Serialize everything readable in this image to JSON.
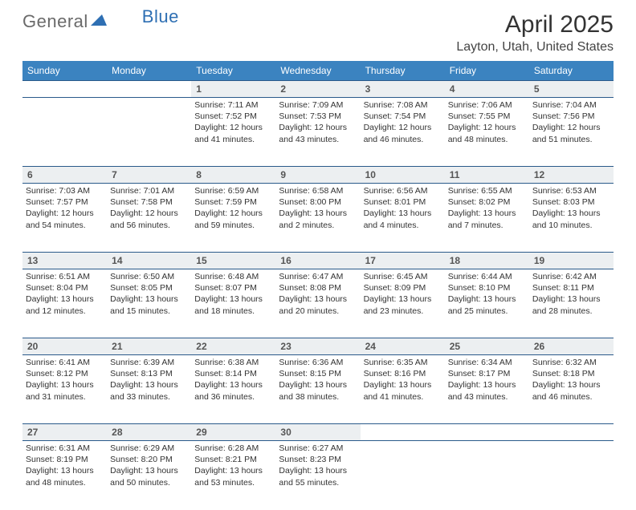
{
  "brand": {
    "part1": "General",
    "part2": "Blue"
  },
  "title": "April 2025",
  "subtitle": "Layton, Utah, United States",
  "colors": {
    "header_bg": "#3b83c0",
    "header_text": "#ffffff",
    "daynum_bg": "#eceff1",
    "rule": "#2a5a8a",
    "brand_blue": "#2e6fb3"
  },
  "weekdays": [
    "Sunday",
    "Monday",
    "Tuesday",
    "Wednesday",
    "Thursday",
    "Friday",
    "Saturday"
  ],
  "weeks": [
    [
      null,
      null,
      {
        "d": "1",
        "sr": "7:11 AM",
        "ss": "7:52 PM",
        "dl": "12 hours and 41 minutes."
      },
      {
        "d": "2",
        "sr": "7:09 AM",
        "ss": "7:53 PM",
        "dl": "12 hours and 43 minutes."
      },
      {
        "d": "3",
        "sr": "7:08 AM",
        "ss": "7:54 PM",
        "dl": "12 hours and 46 minutes."
      },
      {
        "d": "4",
        "sr": "7:06 AM",
        "ss": "7:55 PM",
        "dl": "12 hours and 48 minutes."
      },
      {
        "d": "5",
        "sr": "7:04 AM",
        "ss": "7:56 PM",
        "dl": "12 hours and 51 minutes."
      }
    ],
    [
      {
        "d": "6",
        "sr": "7:03 AM",
        "ss": "7:57 PM",
        "dl": "12 hours and 54 minutes."
      },
      {
        "d": "7",
        "sr": "7:01 AM",
        "ss": "7:58 PM",
        "dl": "12 hours and 56 minutes."
      },
      {
        "d": "8",
        "sr": "6:59 AM",
        "ss": "7:59 PM",
        "dl": "12 hours and 59 minutes."
      },
      {
        "d": "9",
        "sr": "6:58 AM",
        "ss": "8:00 PM",
        "dl": "13 hours and 2 minutes."
      },
      {
        "d": "10",
        "sr": "6:56 AM",
        "ss": "8:01 PM",
        "dl": "13 hours and 4 minutes."
      },
      {
        "d": "11",
        "sr": "6:55 AM",
        "ss": "8:02 PM",
        "dl": "13 hours and 7 minutes."
      },
      {
        "d": "12",
        "sr": "6:53 AM",
        "ss": "8:03 PM",
        "dl": "13 hours and 10 minutes."
      }
    ],
    [
      {
        "d": "13",
        "sr": "6:51 AM",
        "ss": "8:04 PM",
        "dl": "13 hours and 12 minutes."
      },
      {
        "d": "14",
        "sr": "6:50 AM",
        "ss": "8:05 PM",
        "dl": "13 hours and 15 minutes."
      },
      {
        "d": "15",
        "sr": "6:48 AM",
        "ss": "8:07 PM",
        "dl": "13 hours and 18 minutes."
      },
      {
        "d": "16",
        "sr": "6:47 AM",
        "ss": "8:08 PM",
        "dl": "13 hours and 20 minutes."
      },
      {
        "d": "17",
        "sr": "6:45 AM",
        "ss": "8:09 PM",
        "dl": "13 hours and 23 minutes."
      },
      {
        "d": "18",
        "sr": "6:44 AM",
        "ss": "8:10 PM",
        "dl": "13 hours and 25 minutes."
      },
      {
        "d": "19",
        "sr": "6:42 AM",
        "ss": "8:11 PM",
        "dl": "13 hours and 28 minutes."
      }
    ],
    [
      {
        "d": "20",
        "sr": "6:41 AM",
        "ss": "8:12 PM",
        "dl": "13 hours and 31 minutes."
      },
      {
        "d": "21",
        "sr": "6:39 AM",
        "ss": "8:13 PM",
        "dl": "13 hours and 33 minutes."
      },
      {
        "d": "22",
        "sr": "6:38 AM",
        "ss": "8:14 PM",
        "dl": "13 hours and 36 minutes."
      },
      {
        "d": "23",
        "sr": "6:36 AM",
        "ss": "8:15 PM",
        "dl": "13 hours and 38 minutes."
      },
      {
        "d": "24",
        "sr": "6:35 AM",
        "ss": "8:16 PM",
        "dl": "13 hours and 41 minutes."
      },
      {
        "d": "25",
        "sr": "6:34 AM",
        "ss": "8:17 PM",
        "dl": "13 hours and 43 minutes."
      },
      {
        "d": "26",
        "sr": "6:32 AM",
        "ss": "8:18 PM",
        "dl": "13 hours and 46 minutes."
      }
    ],
    [
      {
        "d": "27",
        "sr": "6:31 AM",
        "ss": "8:19 PM",
        "dl": "13 hours and 48 minutes."
      },
      {
        "d": "28",
        "sr": "6:29 AM",
        "ss": "8:20 PM",
        "dl": "13 hours and 50 minutes."
      },
      {
        "d": "29",
        "sr": "6:28 AM",
        "ss": "8:21 PM",
        "dl": "13 hours and 53 minutes."
      },
      {
        "d": "30",
        "sr": "6:27 AM",
        "ss": "8:23 PM",
        "dl": "13 hours and 55 minutes."
      },
      null,
      null,
      null
    ]
  ],
  "labels": {
    "sunrise": "Sunrise: ",
    "sunset": "Sunset: ",
    "daylight": "Daylight: "
  }
}
